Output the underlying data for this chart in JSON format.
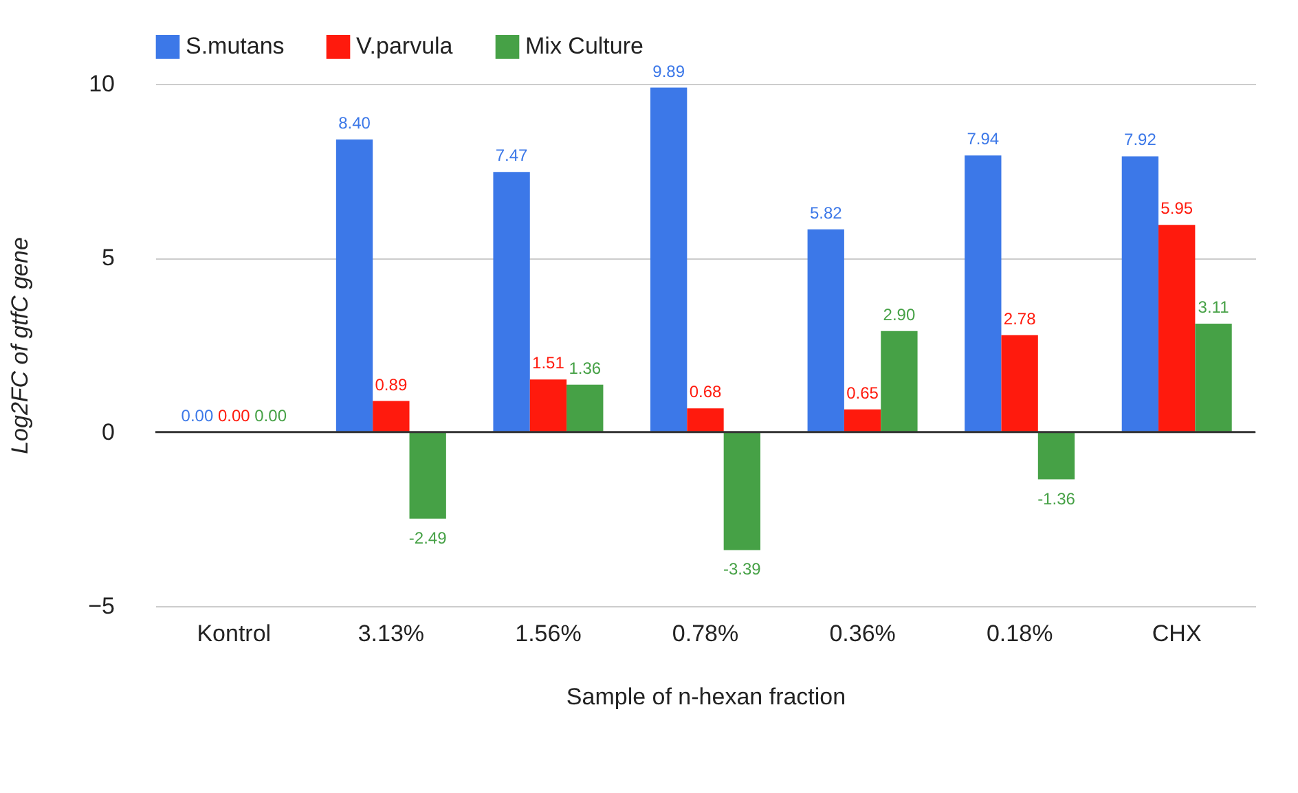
{
  "chart_data": {
    "type": "bar",
    "xlabel": "Sample of n-hexan fraction",
    "ylabel": "Log2FC of gtfC gene",
    "categories": [
      "Kontrol",
      "3.13%",
      "1.56%",
      "0.78%",
      "0.36%",
      "0.18%",
      "CHX"
    ],
    "series": [
      {
        "name": "S.mutans",
        "color": "#3c78e8",
        "values": [
          0.0,
          8.4,
          7.47,
          9.89,
          5.82,
          7.94,
          7.92
        ]
      },
      {
        "name": "V.parvula",
        "color": "#ff1a0d",
        "values": [
          0.0,
          0.89,
          1.51,
          0.68,
          0.65,
          2.78,
          5.95
        ]
      },
      {
        "name": "Mix Culture",
        "color": "#46a146",
        "values": [
          0.0,
          -2.49,
          1.36,
          -3.39,
          2.9,
          -1.36,
          3.11
        ]
      }
    ],
    "value_labels": [
      [
        "0.00",
        "8.40",
        "7.47",
        "9.89",
        "5.82",
        "7.94",
        "7.92"
      ],
      [
        "0.00",
        "0.89",
        "1.51",
        "0.68",
        "0.65",
        "2.78",
        "5.95"
      ],
      [
        "0.00",
        "-2.49",
        "1.36",
        "-3.39",
        "2.90",
        "-1.36",
        "3.11"
      ]
    ],
    "ylim": [
      -5,
      10
    ],
    "yticks": [
      -5,
      0,
      5,
      10
    ],
    "grid": "y",
    "legend": "top"
  }
}
